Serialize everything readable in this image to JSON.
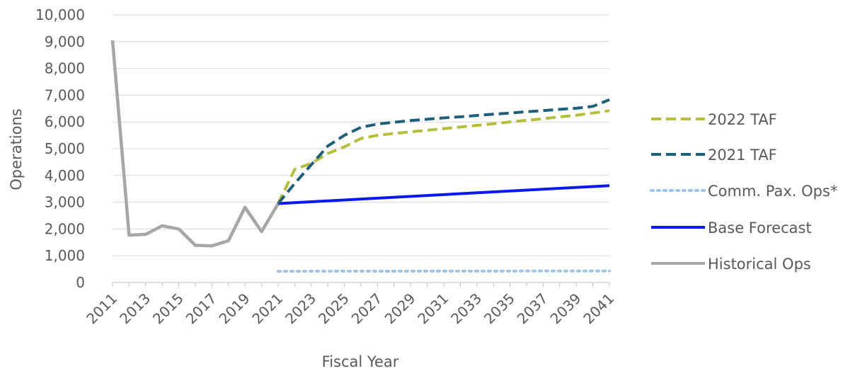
{
  "chart_data": {
    "type": "line",
    "xlabel": "Fiscal Year",
    "ylabel": "Operations",
    "ylim": [
      0,
      10000
    ],
    "y_ticks": [
      "0",
      "1,000",
      "2,000",
      "3,000",
      "4,000",
      "5,000",
      "6,000",
      "7,000",
      "8,000",
      "9,000",
      "10,000"
    ],
    "y_tick_values": [
      0,
      1000,
      2000,
      3000,
      4000,
      5000,
      6000,
      7000,
      8000,
      9000,
      10000
    ],
    "xlim": [
      2011,
      2041
    ],
    "x_tick_labels": [
      "2011",
      "2013",
      "2015",
      "2017",
      "2019",
      "2021",
      "2023",
      "2025",
      "2027",
      "2029",
      "2031",
      "2033",
      "2035",
      "2037",
      "2039",
      "2041"
    ],
    "grid": "horizontal",
    "legend_position": "right",
    "series": [
      {
        "name": "2022 TAF",
        "color": "#b5bd3a",
        "style": "dashed",
        "x": [
          2021,
          2022,
          2023,
          2024,
          2025,
          2026,
          2027,
          2028,
          2029,
          2030,
          2031,
          2032,
          2033,
          2034,
          2035,
          2036,
          2037,
          2038,
          2039,
          2040,
          2041
        ],
        "values": [
          2950,
          4230,
          4450,
          4820,
          5070,
          5380,
          5500,
          5570,
          5630,
          5690,
          5750,
          5810,
          5870,
          5930,
          6000,
          6060,
          6120,
          6190,
          6250,
          6330,
          6420
        ]
      },
      {
        "name": "2021 TAF",
        "color": "#1f5f7a",
        "style": "dashed",
        "x": [
          2021,
          2022,
          2023,
          2024,
          2025,
          2026,
          2027,
          2028,
          2029,
          2030,
          2031,
          2032,
          2033,
          2034,
          2035,
          2036,
          2037,
          2038,
          2039,
          2040,
          2041
        ],
        "values": [
          2950,
          3700,
          4400,
          5100,
          5500,
          5800,
          5920,
          5990,
          6050,
          6100,
          6150,
          6190,
          6240,
          6290,
          6330,
          6380,
          6420,
          6470,
          6510,
          6580,
          6830
        ]
      },
      {
        "name": "Comm. Pax. Ops*",
        "color": "#9dc3e6",
        "style": "dotted",
        "x": [
          2021,
          2041
        ],
        "values": [
          420,
          430
        ]
      },
      {
        "name": "Base Forecast",
        "color": "#0a1aef",
        "style": "solid",
        "x": [
          2021,
          2041
        ],
        "values": [
          2950,
          3620
        ]
      },
      {
        "name": "Historical Ops",
        "color": "#a6a6a6",
        "style": "solid",
        "x": [
          2011,
          2012,
          2013,
          2014,
          2015,
          2016,
          2017,
          2018,
          2019,
          2020,
          2021
        ],
        "values": [
          9050,
          1770,
          1800,
          2120,
          2000,
          1390,
          1370,
          1560,
          2810,
          1900,
          2950
        ]
      }
    ]
  }
}
